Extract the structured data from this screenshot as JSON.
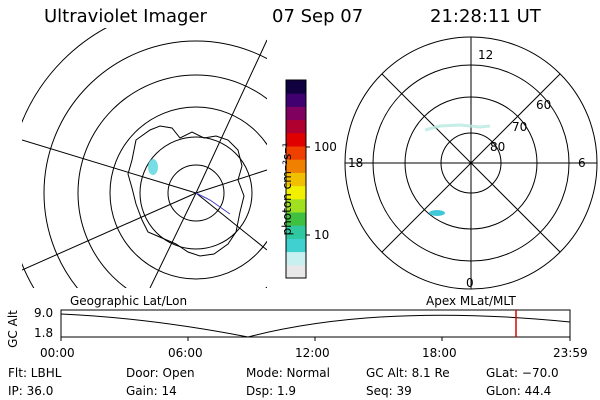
{
  "header": {
    "instrument": "Ultraviolet Imager",
    "date": "07 Sep 07",
    "time": "21:28:11 UT"
  },
  "colorbar": {
    "unit_label": "photon cm⁻²s⁻¹",
    "tick_100": "100",
    "tick_10": "10",
    "colors": [
      "#e8e8e8",
      "#c8f0f0",
      "#40d0d0",
      "#30c8a0",
      "#40c040",
      "#a0e020",
      "#f0f000",
      "#f0c000",
      "#f08000",
      "#f04000",
      "#e00000",
      "#b00030",
      "#800060",
      "#400070",
      "#100040"
    ]
  },
  "polar_plot": {
    "labels": {
      "mlt_12": "12",
      "mlt_18": "18",
      "mlt_6": "6",
      "mlt_0": "0",
      "lat_60": "60",
      "lat_70": "70",
      "lat_80": "80"
    }
  },
  "timeline": {
    "left_label": "Geographic Lat/Lon",
    "right_label": "Apex  MLat/MLT",
    "y_axis_title": "GC Alt",
    "y_top": "9.0",
    "y_bottom": "1.8",
    "x_ticks": [
      "00:00",
      "06:00",
      "12:00",
      "18:00",
      "23:59"
    ],
    "current_time_marker_color": "#e00000"
  },
  "info": {
    "flt": "Flt: LBHL",
    "ip": "IP: 36.0",
    "door": "Door: Open",
    "gain": "Gain: 14",
    "mode": "Mode: Normal",
    "dsp": "Dsp:    1.9",
    "gc_alt": "GC Alt: 8.1 Re",
    "seq": "Seq: 39",
    "glat": "GLat: −70.0",
    "glon": "GLon:  44.4"
  }
}
